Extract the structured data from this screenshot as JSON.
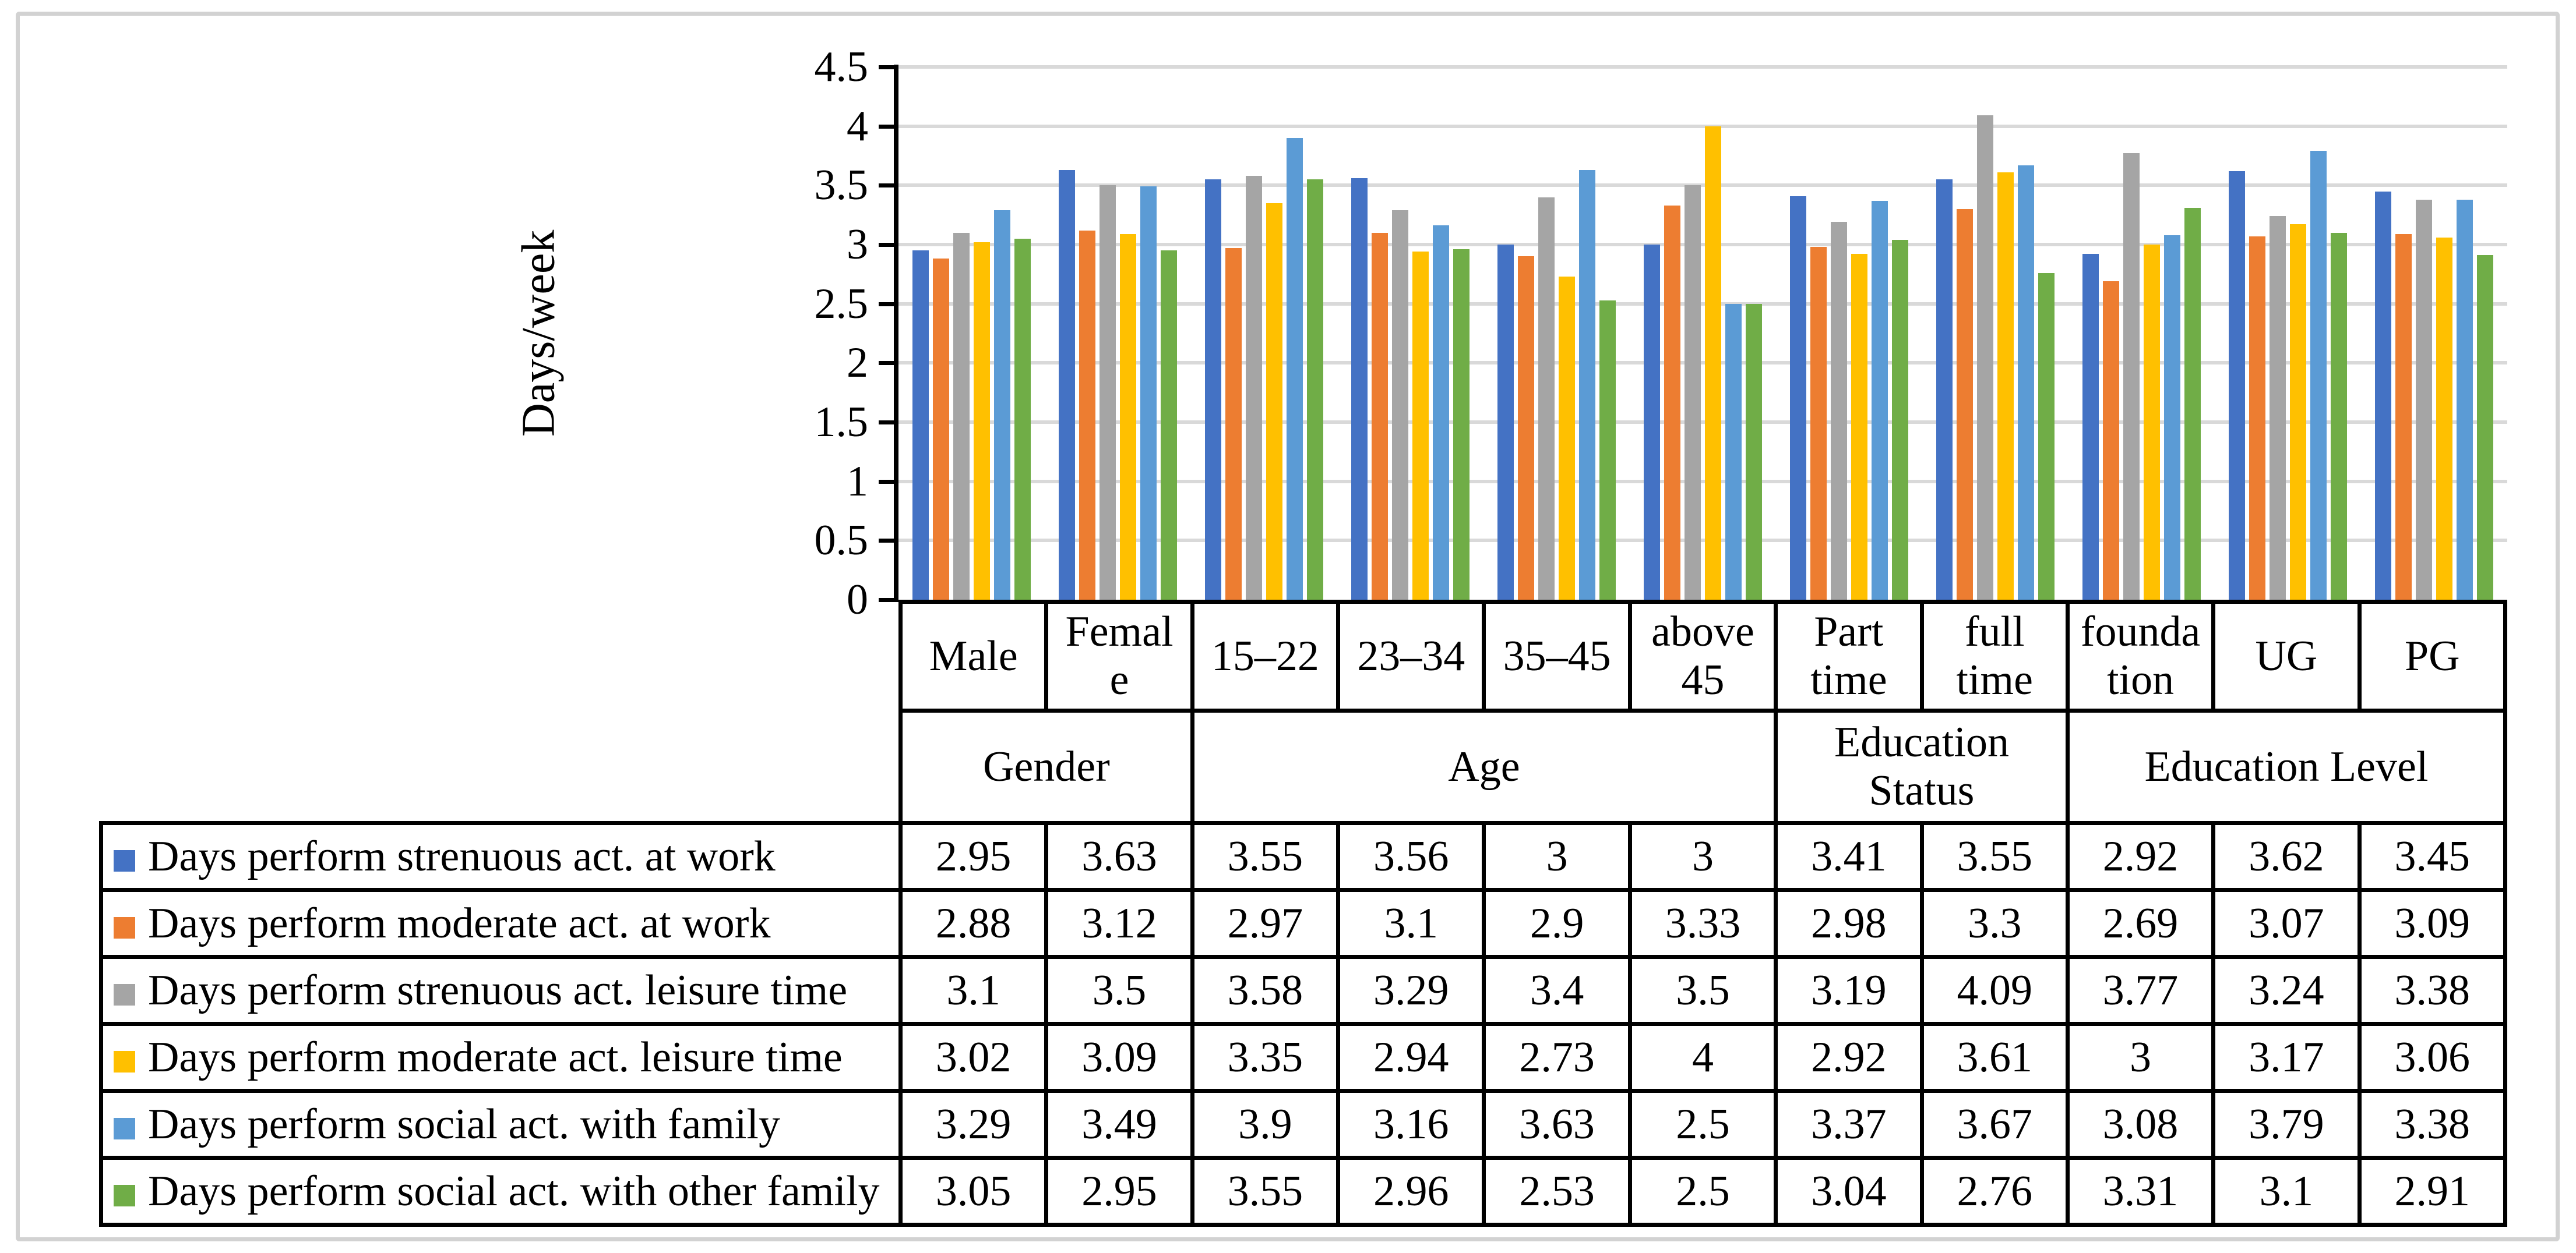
{
  "figure": {
    "border_color": "#d2d2d2",
    "background": "#ffffff"
  },
  "y_axis": {
    "title": "Days/week",
    "tick_labels": [
      "4.5",
      "4",
      "3.5",
      "3",
      "2.5",
      "2",
      "1.5",
      "1",
      "0.5",
      "0"
    ],
    "gridline_color": "#D9D9D9",
    "axis_color": "#000000"
  },
  "chart_data": {
    "type": "bar",
    "title": "",
    "xlabel": "",
    "ylabel": "Days/week",
    "ylim": [
      0,
      4.5
    ],
    "ytick_step": 0.5,
    "grid": true,
    "legend_position": "left-table",
    "categories": [
      "Male",
      "Female",
      "15–22",
      "23–34",
      "35–45",
      "above 45",
      "Part time",
      "full time",
      "foundation",
      "UG",
      "PG"
    ],
    "category_groups": [
      {
        "label": "Gender",
        "span": 2
      },
      {
        "label": "Age",
        "span": 4
      },
      {
        "label": "Education Status",
        "span": 2
      },
      {
        "label": "Education Level",
        "span": 3
      }
    ],
    "series": [
      {
        "name": "Days perform strenuous act. at work",
        "color": "#4472C4",
        "values": [
          2.95,
          3.63,
          3.55,
          3.56,
          3,
          3,
          3.41,
          3.55,
          2.92,
          3.62,
          3.45
        ]
      },
      {
        "name": "Days perform moderate act. at work",
        "color": "#ED7D31",
        "values": [
          2.88,
          3.12,
          2.97,
          3.1,
          2.9,
          3.33,
          2.98,
          3.3,
          2.69,
          3.07,
          3.09
        ]
      },
      {
        "name": "Days perform strenuous act. leisure time",
        "color": "#A5A5A5",
        "values": [
          3.1,
          3.5,
          3.58,
          3.29,
          3.4,
          3.5,
          3.19,
          4.09,
          3.77,
          3.24,
          3.38
        ]
      },
      {
        "name": "Days perform moderate act. leisure time",
        "color": "#FFC000",
        "values": [
          3.02,
          3.09,
          3.35,
          2.94,
          2.73,
          4,
          2.92,
          3.61,
          3,
          3.17,
          3.06
        ]
      },
      {
        "name": "Days perform social act. with family",
        "color": "#5B9BD5",
        "values": [
          3.29,
          3.49,
          3.9,
          3.16,
          3.63,
          2.5,
          3.37,
          3.67,
          3.08,
          3.79,
          3.38
        ]
      },
      {
        "name": "Days perform social act. with other family",
        "color": "#70AD47",
        "values": [
          3.05,
          2.95,
          3.55,
          2.96,
          2.53,
          2.5,
          3.04,
          2.76,
          3.31,
          3.1,
          2.91
        ]
      }
    ]
  },
  "table": {
    "column_headers": [
      "Male",
      "Femal\ne",
      "15–22",
      "23–34",
      "35–45",
      "above\n45",
      "Part\ntime",
      "full\ntime",
      "founda\ntion",
      "UG",
      "PG"
    ],
    "group_headers": [
      {
        "label": "Gender",
        "span": 2
      },
      {
        "label": "Age",
        "span": 4
      },
      {
        "label": "Education\nStatus",
        "span": 2
      },
      {
        "label": "Education Level",
        "span": 3
      }
    ]
  }
}
